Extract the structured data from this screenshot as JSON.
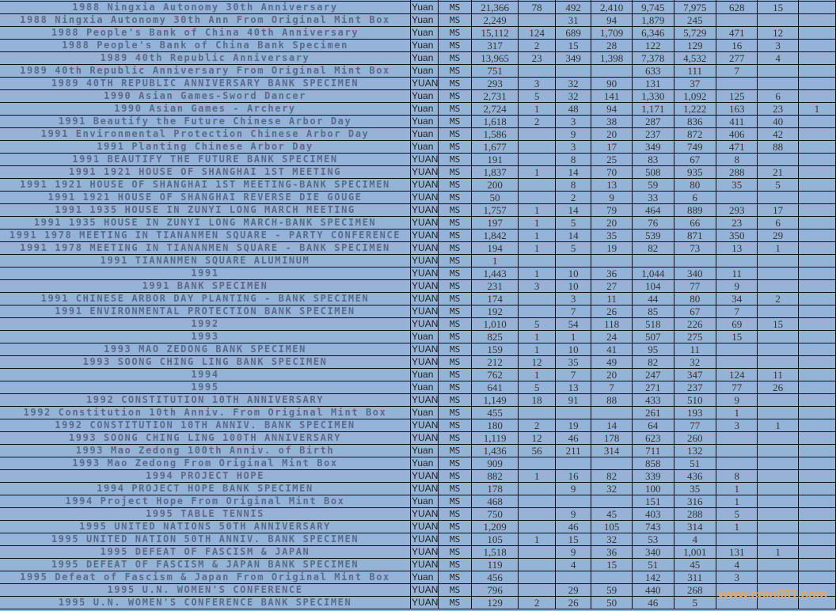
{
  "colors": {
    "background": "#95b3d7",
    "name_text": "#5b6a8b",
    "watermark": "#e2a868"
  },
  "watermark": "www.coin001.com",
  "rows": [
    [
      "",
      "",
      "",
      "",
      "",
      "",
      "",
      "",
      "",
      "",
      "",
      ""
    ],
    [
      "1988 Ningxia Autonomy 30th Anniversary",
      "Yuan",
      "MS",
      "21,366",
      "78",
      "492",
      "2,410",
      "9,745",
      "7,975",
      "628",
      "15",
      ""
    ],
    [
      "1988 Ningxia Autonomy 30th Ann From Original Mint Box",
      "Yuan",
      "MS",
      "2,249",
      "",
      "31",
      "94",
      "1,879",
      "245",
      "",
      "",
      ""
    ],
    [
      "1988 People's Bank of China 40th Anniversary",
      "Yuan",
      "MS",
      "15,112",
      "124",
      "689",
      "1,709",
      "6,346",
      "5,729",
      "471",
      "12",
      ""
    ],
    [
      "1988 People's Bank of China Bank Specimen",
      "Yuan",
      "MS",
      "317",
      "2",
      "15",
      "28",
      "122",
      "129",
      "16",
      "3",
      ""
    ],
    [
      "1989 40th Republic Anniversary",
      "Yuan",
      "MS",
      "13,965",
      "23",
      "349",
      "1,398",
      "7,378",
      "4,532",
      "277",
      "4",
      ""
    ],
    [
      "1989 40th Republic Anniversary From Original Mint Box",
      "Yuan",
      "MS",
      "751",
      "",
      "",
      "",
      "633",
      "111",
      "7",
      "",
      ""
    ],
    [
      "1989 40TH REPUBLIC ANNIVERSARY BANK SPECIMEN",
      "YUAN",
      "MS",
      "293",
      "3",
      "32",
      "90",
      "131",
      "37",
      "",
      "",
      ""
    ],
    [
      "1990 Asian Games-Sword Dancer",
      "Yuan",
      "MS",
      "2,731",
      "5",
      "32",
      "141",
      "1,330",
      "1,092",
      "125",
      "6",
      ""
    ],
    [
      "1990 Asian Games - Archery",
      "Yuan",
      "MS",
      "2,724",
      "1",
      "48",
      "94",
      "1,171",
      "1,222",
      "163",
      "23",
      "1"
    ],
    [
      "1991 Beautify the Future Chinese Arbor Day",
      "Yuan",
      "MS",
      "1,618",
      "2",
      "3",
      "38",
      "287",
      "836",
      "411",
      "40",
      ""
    ],
    [
      "1991 Environmental Protection Chinese Arbor Day",
      "Yuan",
      "MS",
      "1,586",
      "",
      "9",
      "20",
      "237",
      "872",
      "406",
      "42",
      ""
    ],
    [
      "1991 Planting Chinese Arbor Day",
      "Yuan",
      "MS",
      "1,677",
      "",
      "3",
      "17",
      "349",
      "749",
      "471",
      "88",
      ""
    ],
    [
      "1991 BEAUTIFY THE FUTURE BANK SPECIMEN",
      "YUAN",
      "MS",
      "191",
      "",
      "8",
      "25",
      "83",
      "67",
      "8",
      "",
      ""
    ],
    [
      "1991 1921 HOUSE OF SHANGHAI 1ST MEETING",
      "YUAN",
      "MS",
      "1,837",
      "1",
      "14",
      "70",
      "508",
      "935",
      "288",
      "21",
      ""
    ],
    [
      "1991 1921 HOUSE OF SHANGHAI 1ST MEETING-BANK SPECIMEN",
      "YUAN",
      "MS",
      "200",
      "",
      "8",
      "13",
      "59",
      "80",
      "35",
      "5",
      ""
    ],
    [
      "1991 1921 HOUSE OF SHANGHAI REVERSE DIE GOUGE",
      "YUAN",
      "MS",
      "50",
      "",
      "2",
      "9",
      "33",
      "6",
      "",
      "",
      ""
    ],
    [
      "1991 1935 HOUSE IN ZUNYI LONG MARCH MEETING",
      "YUAN",
      "MS",
      "1,757",
      "1",
      "14",
      "79",
      "464",
      "889",
      "293",
      "17",
      ""
    ],
    [
      "1991 1935 HOUSE IN ZUNYI LONG MARCH-BANK SPECIMEN",
      "YUAN",
      "MS",
      "197",
      "1",
      "5",
      "20",
      "76",
      "66",
      "23",
      "6",
      ""
    ],
    [
      "1991 1978 MEETING IN TIANANMEN SQUARE - PARTY CONFERENCE",
      "YUAN",
      "MS",
      "1,842",
      "1",
      "14",
      "35",
      "539",
      "871",
      "350",
      "29",
      ""
    ],
    [
      "1991 1978 MEETING IN TIANANMEN SQUARE - BANK SPECIMEN",
      "YUAN",
      "MS",
      "194",
      "1",
      "5",
      "19",
      "82",
      "73",
      "13",
      "1",
      ""
    ],
    [
      "1991 TIANANMEN SQUARE ALUMINUM",
      "YUAN",
      "MS",
      "1",
      "",
      "",
      "",
      "",
      "",
      "",
      "",
      ""
    ],
    [
      "1991",
      "YUAN",
      "MS",
      "1,443",
      "1",
      "10",
      "36",
      "1,044",
      "340",
      "11",
      "",
      ""
    ],
    [
      "1991 BANK SPECIMEN",
      "YUAN",
      "MS",
      "231",
      "3",
      "10",
      "27",
      "104",
      "77",
      "9",
      "",
      ""
    ],
    [
      "1991 CHINESE ARBOR DAY PLANTING - BANK SPECIMEN",
      "YUAN",
      "MS",
      "174",
      "",
      "3",
      "11",
      "44",
      "80",
      "34",
      "2",
      ""
    ],
    [
      "1991 ENVIRONMENTAL PROTECTION BANK SPECIMEN",
      "YUAN",
      "MS",
      "192",
      "",
      "7",
      "26",
      "85",
      "67",
      "7",
      "",
      ""
    ],
    [
      "1992",
      "YUAN",
      "MS",
      "1,010",
      "5",
      "54",
      "118",
      "518",
      "226",
      "69",
      "15",
      ""
    ],
    [
      "1993",
      "Yuan",
      "MS",
      "825",
      "1",
      "1",
      "24",
      "507",
      "275",
      "15",
      "",
      ""
    ],
    [
      "1993 MAO ZEDONG BANK SPECIMEN",
      "YUAN",
      "MS",
      "159",
      "1",
      "10",
      "41",
      "95",
      "11",
      "",
      "",
      ""
    ],
    [
      "1993 SOONG CHING LING BANK SPECIMEN",
      "YUAN",
      "MS",
      "212",
      "12",
      "35",
      "49",
      "82",
      "32",
      "",
      "",
      ""
    ],
    [
      "1994",
      "Yuan",
      "MS",
      "762",
      "1",
      "7",
      "20",
      "247",
      "347",
      "124",
      "11",
      ""
    ],
    [
      "1995",
      "Yuan",
      "MS",
      "641",
      "5",
      "13",
      "7",
      "271",
      "237",
      "77",
      "26",
      ""
    ],
    [
      "1992 CONSTITUTION 10TH ANNIVERSARY",
      "YUAN",
      "MS",
      "1,149",
      "18",
      "91",
      "88",
      "433",
      "510",
      "9",
      "",
      ""
    ],
    [
      "1992 Constitution 10th Anniv. From Original Mint Box",
      "Yuan",
      "MS",
      "455",
      "",
      "",
      "",
      "261",
      "193",
      "1",
      "",
      ""
    ],
    [
      "1992 CONSTITUTION 10TH ANNIV. BANK SPECIMEN",
      "YUAN",
      "MS",
      "180",
      "2",
      "19",
      "14",
      "64",
      "77",
      "3",
      "1",
      ""
    ],
    [
      "1993 SOONG CHING LING 100TH ANNIVERSARY",
      "YUAN",
      "MS",
      "1,119",
      "12",
      "46",
      "178",
      "623",
      "260",
      "",
      "",
      ""
    ],
    [
      "1993 Mao Zedong 100th Anniv. of Birth",
      "Yuan",
      "MS",
      "1,436",
      "56",
      "211",
      "314",
      "711",
      "132",
      "",
      "",
      ""
    ],
    [
      "1993 Mao Zedong From Original Mint Box",
      "Yuan",
      "MS",
      "909",
      "",
      "",
      "",
      "858",
      "51",
      "",
      "",
      ""
    ],
    [
      "1994 PROJECT HOPE",
      "YUAN",
      "MS",
      "882",
      "1",
      "16",
      "82",
      "339",
      "436",
      "8",
      "",
      ""
    ],
    [
      "1994 PROJECT HOPE BANK SPECIMEN",
      "YUAN",
      "MS",
      "178",
      "",
      "9",
      "32",
      "100",
      "35",
      "1",
      "",
      ""
    ],
    [
      "1994 Project Hope From Original Mint Box",
      "Yuan",
      "MS",
      "468",
      "",
      "",
      "",
      "151",
      "316",
      "1",
      "",
      ""
    ],
    [
      "1995 TABLE TENNIS",
      "YUAN",
      "MS",
      "750",
      "",
      "9",
      "45",
      "403",
      "288",
      "5",
      "",
      ""
    ],
    [
      "1995 UNITED NATIONS 50TH ANNIVERSARY",
      "YUAN",
      "MS",
      "1,209",
      "",
      "46",
      "105",
      "743",
      "314",
      "1",
      "",
      ""
    ],
    [
      "1995 UNITED NATION 50TH ANNIV. BANK SPECIMEN",
      "YUAN",
      "MS",
      "105",
      "1",
      "15",
      "32",
      "53",
      "4",
      "",
      "",
      ""
    ],
    [
      "1995 DEFEAT OF FASCISM & JAPAN",
      "YUAN",
      "MS",
      "1,518",
      "",
      "9",
      "36",
      "340",
      "1,001",
      "131",
      "1",
      ""
    ],
    [
      "1995 DEFEAT OF FASCISM & JAPAN BANK SPECIMEN",
      "YUAN",
      "MS",
      "119",
      "",
      "4",
      "15",
      "51",
      "45",
      "4",
      "",
      ""
    ],
    [
      "1995 Defeat of Fascism & Japan From Original Mint Box",
      "Yuan",
      "MS",
      "456",
      "",
      "",
      "",
      "142",
      "311",
      "3",
      "",
      ""
    ],
    [
      "1995 U.N. WOMEN'S CONFERENCE",
      "YUAN",
      "MS",
      "796",
      "",
      "29",
      "59",
      "440",
      "268",
      "",
      "",
      ""
    ],
    [
      "1995 U.N. WOMEN'S CONFERENCE BANK SPECIMEN",
      "YUAN",
      "MS",
      "129",
      "2",
      "26",
      "50",
      "46",
      "5",
      "",
      "",
      ""
    ]
  ]
}
